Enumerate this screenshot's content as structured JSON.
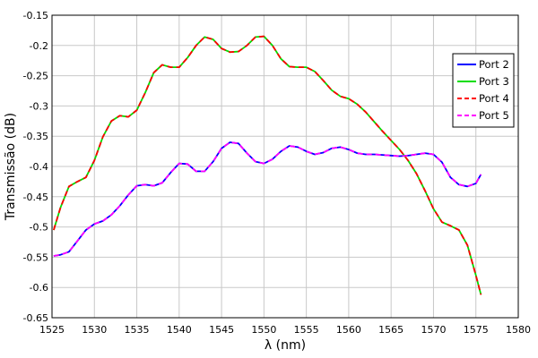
{
  "chart_data": {
    "type": "line",
    "title": "",
    "xlabel": "λ (nm)",
    "ylabel": "Transmissão (dB)",
    "xlim": [
      1525,
      1580
    ],
    "ylim": [
      -0.65,
      -0.15
    ],
    "xticks": [
      "1525",
      "1530",
      "1535",
      "1540",
      "1545",
      "1550",
      "1555",
      "1560",
      "1565",
      "1570",
      "1575",
      "1580"
    ],
    "yticks": [
      "-0.15",
      "-0.2",
      "-0.25",
      "-0.3",
      "-0.35",
      "-0.4",
      "-0.45",
      "-0.5",
      "-0.55",
      "-0.6",
      "-0.65"
    ],
    "grid": true,
    "legend_position": "top-right",
    "series": [
      {
        "name": "Port 2",
        "color": "#0000ff",
        "dash": "solid",
        "x": [
          1525.2,
          1526,
          1527,
          1528,
          1529,
          1530,
          1531,
          1532,
          1533,
          1534,
          1535,
          1536,
          1537,
          1538,
          1539,
          1540,
          1541,
          1542,
          1543,
          1544,
          1545,
          1546,
          1547,
          1548,
          1549,
          1550,
          1551,
          1552,
          1553,
          1554,
          1555,
          1556,
          1557,
          1558,
          1559,
          1560,
          1561,
          1562,
          1563,
          1564,
          1565,
          1566,
          1567,
          1568,
          1569,
          1570,
          1571,
          1572,
          1573,
          1574,
          1575,
          1575.6
        ],
        "y": [
          -0.548,
          -0.546,
          -0.541,
          -0.523,
          -0.505,
          -0.495,
          -0.49,
          -0.48,
          -0.465,
          -0.447,
          -0.432,
          -0.43,
          -0.432,
          -0.427,
          -0.41,
          -0.395,
          -0.396,
          -0.408,
          -0.408,
          -0.392,
          -0.37,
          -0.36,
          -0.362,
          -0.378,
          -0.392,
          -0.395,
          -0.388,
          -0.375,
          -0.366,
          -0.368,
          -0.375,
          -0.38,
          -0.377,
          -0.37,
          -0.368,
          -0.372,
          -0.378,
          -0.38,
          -0.38,
          -0.381,
          -0.382,
          -0.383,
          -0.382,
          -0.38,
          -0.378,
          -0.38,
          -0.393,
          -0.418,
          -0.43,
          -0.433,
          -0.428,
          -0.413
        ]
      },
      {
        "name": "Port 3",
        "color": "#00dd00",
        "dash": "solid",
        "x": [
          1525.2,
          1526,
          1527,
          1528,
          1529,
          1530,
          1531,
          1532,
          1533,
          1534,
          1535,
          1536,
          1537,
          1538,
          1539,
          1540,
          1541,
          1542,
          1543,
          1544,
          1545,
          1546,
          1547,
          1548,
          1549,
          1550,
          1551,
          1552,
          1553,
          1554,
          1555,
          1556,
          1557,
          1558,
          1559,
          1560,
          1561,
          1562,
          1563,
          1564,
          1565,
          1566,
          1567,
          1568,
          1569,
          1570,
          1571,
          1572,
          1573,
          1574,
          1575,
          1575.6
        ],
        "y": [
          -0.505,
          -0.468,
          -0.433,
          -0.425,
          -0.418,
          -0.39,
          -0.351,
          -0.325,
          -0.316,
          -0.318,
          -0.307,
          -0.278,
          -0.245,
          -0.232,
          -0.236,
          -0.236,
          -0.22,
          -0.2,
          -0.186,
          -0.19,
          -0.205,
          -0.211,
          -0.21,
          -0.2,
          -0.186,
          -0.185,
          -0.2,
          -0.222,
          -0.235,
          -0.236,
          -0.236,
          -0.243,
          -0.258,
          -0.274,
          -0.284,
          -0.288,
          -0.297,
          -0.31,
          -0.326,
          -0.342,
          -0.357,
          -0.372,
          -0.39,
          -0.412,
          -0.44,
          -0.47,
          -0.492,
          -0.498,
          -0.505,
          -0.53,
          -0.58,
          -0.612
        ]
      },
      {
        "name": "Port 4",
        "color": "#ff0000",
        "dash": "dashed",
        "x": [
          1525.2,
          1526,
          1527,
          1528,
          1529,
          1530,
          1531,
          1532,
          1533,
          1534,
          1535,
          1536,
          1537,
          1538,
          1539,
          1540,
          1541,
          1542,
          1543,
          1544,
          1545,
          1546,
          1547,
          1548,
          1549,
          1550,
          1551,
          1552,
          1553,
          1554,
          1555,
          1556,
          1557,
          1558,
          1559,
          1560,
          1561,
          1562,
          1563,
          1564,
          1565,
          1566,
          1567,
          1568,
          1569,
          1570,
          1571,
          1572,
          1573,
          1574,
          1575,
          1575.6
        ],
        "y": [
          -0.505,
          -0.468,
          -0.433,
          -0.425,
          -0.418,
          -0.39,
          -0.351,
          -0.325,
          -0.316,
          -0.318,
          -0.307,
          -0.278,
          -0.245,
          -0.232,
          -0.236,
          -0.236,
          -0.22,
          -0.2,
          -0.186,
          -0.19,
          -0.205,
          -0.211,
          -0.21,
          -0.2,
          -0.186,
          -0.185,
          -0.2,
          -0.222,
          -0.235,
          -0.236,
          -0.236,
          -0.243,
          -0.258,
          -0.274,
          -0.284,
          -0.288,
          -0.297,
          -0.31,
          -0.326,
          -0.342,
          -0.357,
          -0.372,
          -0.39,
          -0.412,
          -0.44,
          -0.47,
          -0.492,
          -0.498,
          -0.505,
          -0.53,
          -0.58,
          -0.612
        ]
      },
      {
        "name": "Port 5",
        "color": "#ff00ff",
        "dash": "dashed",
        "x": [
          1525.2,
          1526,
          1527,
          1528,
          1529,
          1530,
          1531,
          1532,
          1533,
          1534,
          1535,
          1536,
          1537,
          1538,
          1539,
          1540,
          1541,
          1542,
          1543,
          1544,
          1545,
          1546,
          1547,
          1548,
          1549,
          1550,
          1551,
          1552,
          1553,
          1554,
          1555,
          1556,
          1557,
          1558,
          1559,
          1560,
          1561,
          1562,
          1563,
          1564,
          1565,
          1566,
          1567,
          1568,
          1569,
          1570,
          1571,
          1572,
          1573,
          1574,
          1575,
          1575.6
        ],
        "y": [
          -0.548,
          -0.546,
          -0.541,
          -0.523,
          -0.505,
          -0.495,
          -0.49,
          -0.48,
          -0.465,
          -0.447,
          -0.432,
          -0.43,
          -0.432,
          -0.427,
          -0.41,
          -0.395,
          -0.396,
          -0.408,
          -0.408,
          -0.392,
          -0.37,
          -0.36,
          -0.362,
          -0.378,
          -0.392,
          -0.395,
          -0.388,
          -0.375,
          -0.366,
          -0.368,
          -0.375,
          -0.38,
          -0.377,
          -0.37,
          -0.368,
          -0.372,
          -0.378,
          -0.38,
          -0.38,
          -0.381,
          -0.382,
          -0.383,
          -0.382,
          -0.38,
          -0.378,
          -0.38,
          -0.393,
          -0.418,
          -0.43,
          -0.433,
          -0.428,
          -0.413
        ]
      }
    ]
  }
}
